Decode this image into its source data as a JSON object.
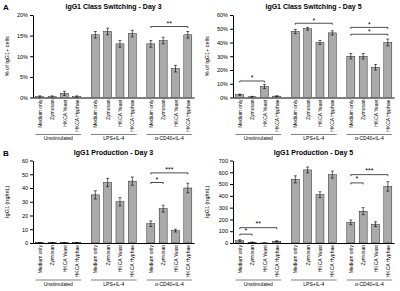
{
  "chart_data": [
    {
      "type": "bar",
      "panel_label": "A",
      "title": "IgG1 Class Switching - Day 3",
      "ylabel": "% of IgG1+ cells",
      "categories": [
        "Medium only",
        "Zymosan",
        "HKCA Yeast",
        "HKCA Hyphae"
      ],
      "color": "#aaaaaa",
      "series": [
        {
          "name": "Unstimulated",
          "values": [
            0.2,
            0.2,
            1.0,
            0.2
          ],
          "errors": [
            0.2,
            0.2,
            0.5,
            0.2
          ]
        },
        {
          "name": "LPS+IL-4",
          "values": [
            15.2,
            16.0,
            13.0,
            15.5
          ],
          "errors": [
            0.8,
            0.8,
            0.8,
            0.8
          ]
        },
        {
          "name": "α-CD40+IL-4",
          "values": [
            13.0,
            13.8,
            7.0,
            15.2
          ],
          "errors": [
            0.8,
            0.8,
            0.8,
            0.8
          ]
        }
      ],
      "ylim": [
        0,
        20
      ],
      "yticks": [
        {
          "value": 0,
          "label": "0%"
        },
        {
          "value": 5,
          "label": "5%"
        },
        {
          "value": 10,
          "label": "10%"
        },
        {
          "value": 15,
          "label": "15%"
        },
        {
          "value": 20,
          "label": "20%"
        }
      ],
      "annotations": [
        {
          "text": "**",
          "series": 2,
          "from": 0,
          "to": 3,
          "y": 17.2,
          "y_text": 17.4
        }
      ]
    },
    {
      "type": "bar",
      "title": "IgG1 Class Switching - Day 5",
      "ylabel": "% of IgG1+ cells",
      "categories": [
        "Medium only",
        "Zymosan",
        "HKCA Yeast",
        "HKCA Hyphae"
      ],
      "color": "#aaaaaa",
      "series": [
        {
          "name": "Unstimulated",
          "values": [
            2.0,
            0.5,
            8.0,
            1.0
          ],
          "errors": [
            0.5,
            0.3,
            1.5,
            0.3
          ]
        },
        {
          "name": "LPS+IL-4",
          "values": [
            48.0,
            50.0,
            40.0,
            47.0
          ],
          "errors": [
            1.5,
            1.0,
            1.5,
            1.5
          ]
        },
        {
          "name": "α-CD40+IL-4",
          "values": [
            30.0,
            30.0,
            22.0,
            40.0
          ],
          "errors": [
            2.0,
            2.0,
            2.0,
            2.5
          ]
        }
      ],
      "ylim": [
        0,
        60
      ],
      "yticks": [
        {
          "value": 0,
          "label": "0%"
        },
        {
          "value": 10,
          "label": "10%"
        },
        {
          "value": 20,
          "label": "20%"
        },
        {
          "value": 30,
          "label": "30%"
        },
        {
          "value": 40,
          "label": "40%"
        },
        {
          "value": 50,
          "label": "50%"
        },
        {
          "value": 60,
          "label": "60%"
        }
      ],
      "annotations": [
        {
          "text": "*",
          "series": 1,
          "from": 0,
          "to": 3,
          "y": 54,
          "y_text": 54.5
        },
        {
          "text": "*",
          "series": 2,
          "from": 0,
          "to": 3,
          "y": 46,
          "y_text": 46.5
        },
        {
          "text": "*",
          "series": 2,
          "from": 0,
          "to": 3,
          "y": 51,
          "y_text": 51.5
        },
        {
          "text": "*",
          "series": 0,
          "from": 0,
          "to": 2,
          "y": 12,
          "y_text": 12.5
        }
      ]
    },
    {
      "type": "bar",
      "panel_label": "B",
      "title": "IgG1 Production - Day 3",
      "ylabel": "IgG1 (ng/mL)",
      "categories": [
        "Medium only",
        "Zymosan",
        "HKCA Yeast",
        "HKCA Hyphae"
      ],
      "color": "#aaaaaa",
      "series": [
        {
          "name": "Unstimulated",
          "values": [
            0.2,
            0.2,
            0.2,
            0.2
          ],
          "errors": [
            0.1,
            0.1,
            0.1,
            0.1
          ]
        },
        {
          "name": "LPS+IL-4",
          "values": [
            35.0,
            44.0,
            30.0,
            45.0
          ],
          "errors": [
            3.0,
            3.0,
            3.0,
            3.0
          ]
        },
        {
          "name": "α-CD40+IL-4",
          "values": [
            14.0,
            25.0,
            9.0,
            40.0
          ],
          "errors": [
            2.0,
            2.5,
            1.0,
            3.5
          ]
        }
      ],
      "ylim": [
        0,
        60
      ],
      "yticks": [
        0,
        10,
        20,
        30,
        40,
        50,
        60
      ],
      "annotations": [
        {
          "text": "***",
          "series": 2,
          "from": 0,
          "to": 3,
          "y": 51,
          "y_text": 51.5
        },
        {
          "text": "*",
          "series": 2,
          "from": 0,
          "to": 1,
          "y": 44,
          "y_text": 44.5
        }
      ]
    },
    {
      "type": "bar",
      "title": "IgG1 Production - Day 5",
      "ylabel": "IgG1 (ng/mL)",
      "categories": [
        "Medium only",
        "Zymosan",
        "HKCA Yeast",
        "HKCA Hyphae"
      ],
      "color": "#aaaaaa",
      "series": [
        {
          "name": "Unstimulated",
          "values": [
            20.0,
            5.0,
            0.5,
            15.0
          ],
          "errors": [
            8.0,
            3.0,
            0.3,
            5.0
          ]
        },
        {
          "name": "LPS+IL-4",
          "values": [
            540.0,
            620.0,
            410.0,
            580.0
          ],
          "errors": [
            30.0,
            25.0,
            25.0,
            30.0
          ]
        },
        {
          "name": "α-CD40+IL-4",
          "values": [
            175.0,
            270.0,
            160.0,
            480.0
          ],
          "errors": [
            20.0,
            30.0,
            20.0,
            40.0
          ]
        }
      ],
      "ylim": [
        0,
        700
      ],
      "yticks": [
        0,
        100,
        200,
        300,
        400,
        500,
        600,
        700
      ],
      "annotations": [
        {
          "text": "***",
          "series": 2,
          "from": 0,
          "to": 3,
          "y": 580,
          "y_text": 595
        },
        {
          "text": "*",
          "series": 2,
          "from": 0,
          "to": 1,
          "y": 510,
          "y_text": 523
        },
        {
          "text": "*",
          "series": 0,
          "from": 0,
          "to": 1,
          "y": 75,
          "y_text": 85
        },
        {
          "text": "**",
          "series": 0,
          "from": 0,
          "to": 3,
          "y": 130,
          "y_text": 143
        }
      ]
    }
  ]
}
